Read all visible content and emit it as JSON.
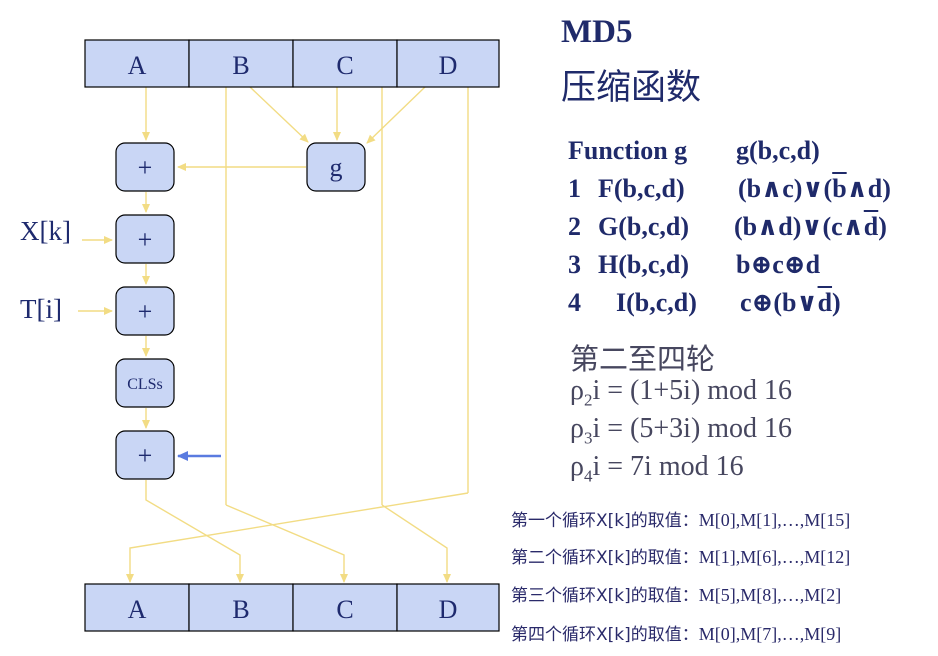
{
  "title": "MD5",
  "subtitle": "压缩函数",
  "registers_top": [
    "A",
    "B",
    "C",
    "D"
  ],
  "registers_bottom": [
    "A",
    "B",
    "C",
    "D"
  ],
  "g_label": "g",
  "plus_label": "+",
  "cls_label": "CLSs",
  "input_xk": "X[k]",
  "input_ti": "T[i]",
  "functions": [
    {
      "num": "",
      "name": "Function g",
      "expr": "g(b,c,d)"
    },
    {
      "num": "1",
      "name": "F(b,c,d)",
      "expr_parts": [
        "(b∧c)∨(",
        "b",
        "∧d)"
      ]
    },
    {
      "num": "2",
      "name": "G(b,c,d)",
      "expr_parts": [
        "(b∧d)∨(c∧",
        "d",
        ")"
      ]
    },
    {
      "num": "3",
      "name": "H(b,c,d)",
      "expr_parts": [
        "b⊕c⊕d"
      ]
    },
    {
      "num": "4",
      "name": "I(b,c,d)",
      "expr_parts": [
        "c⊕(b∨",
        "d",
        ")"
      ]
    }
  ],
  "rounds_heading": "第二至四轮",
  "rho": [
    {
      "sub": "2",
      "rest": "i = (1+5i) mod 16"
    },
    {
      "sub": "3",
      "rest": "i = (5+3i) mod 16"
    },
    {
      "sub": "4",
      "rest": "i = 7i mod 16"
    }
  ],
  "rho_symbol": "ρ",
  "xk_rounds": [
    {
      "label": "第一个循环X[k]的取值：",
      "value": "M[0],M[1],…,M[15]"
    },
    {
      "label": "第二个循环X[k]的取值：",
      "value": "M[1],M[6],…,M[12]"
    },
    {
      "label": "第三个循环X[k]的取值：",
      "value": "M[5],M[8],…,M[2]"
    },
    {
      "label": "第四个循环X[k]的取值：",
      "value": "M[0],M[7],…,M[9]"
    }
  ],
  "colors": {
    "box_fill": "#c9d6f5",
    "wire": "#f2dc84",
    "text": "#1f2a6a",
    "arrow_blue": "#5a7be0"
  }
}
